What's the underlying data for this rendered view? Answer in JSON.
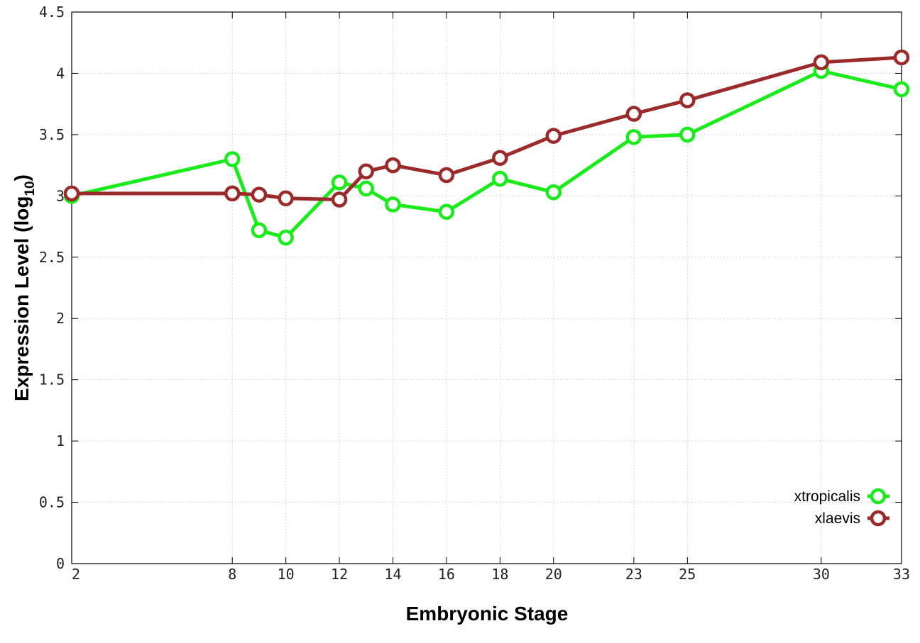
{
  "chart_data": {
    "type": "line",
    "xlabel": "Embryonic Stage",
    "ylabel_main": "Expression Level (log",
    "ylabel_sub": "10",
    "ylabel_close": ")",
    "xlim": [
      2,
      33
    ],
    "ylim": [
      0,
      4.5
    ],
    "xticks": [
      2,
      8,
      10,
      12,
      14,
      16,
      18,
      20,
      23,
      25,
      30,
      33
    ],
    "xtick_labels": [
      "2",
      "8",
      "10",
      "12",
      "14",
      "16",
      "18",
      "20",
      "23",
      "25",
      "30",
      "33"
    ],
    "yticks": [
      0,
      0.5,
      1,
      1.5,
      2,
      2.5,
      3,
      3.5,
      4,
      4.5
    ],
    "ytick_labels": [
      "0",
      "0.5",
      "1",
      "1.5",
      "2",
      "2.5",
      "3",
      "3.5",
      "4",
      "4.5"
    ],
    "grid": true,
    "legend_position": "bottom-right",
    "series": [
      {
        "name": "xtropicalis",
        "color": "#1aeb1a",
        "x": [
          2,
          8,
          9,
          10,
          12,
          13,
          14,
          16,
          18,
          20,
          23,
          25,
          30,
          33
        ],
        "y": [
          3.0,
          3.3,
          2.72,
          2.66,
          3.11,
          3.06,
          2.93,
          2.87,
          3.14,
          3.03,
          3.48,
          3.5,
          4.02,
          3.87
        ]
      },
      {
        "name": "xlaevis",
        "color": "#9b2a2a",
        "x": [
          2,
          8,
          9,
          10,
          12,
          13,
          14,
          16,
          18,
          20,
          23,
          25,
          30,
          33
        ],
        "y": [
          3.02,
          3.02,
          3.01,
          2.98,
          2.97,
          3.2,
          3.25,
          3.17,
          3.31,
          3.49,
          3.67,
          3.78,
          4.09,
          4.13
        ]
      }
    ]
  }
}
